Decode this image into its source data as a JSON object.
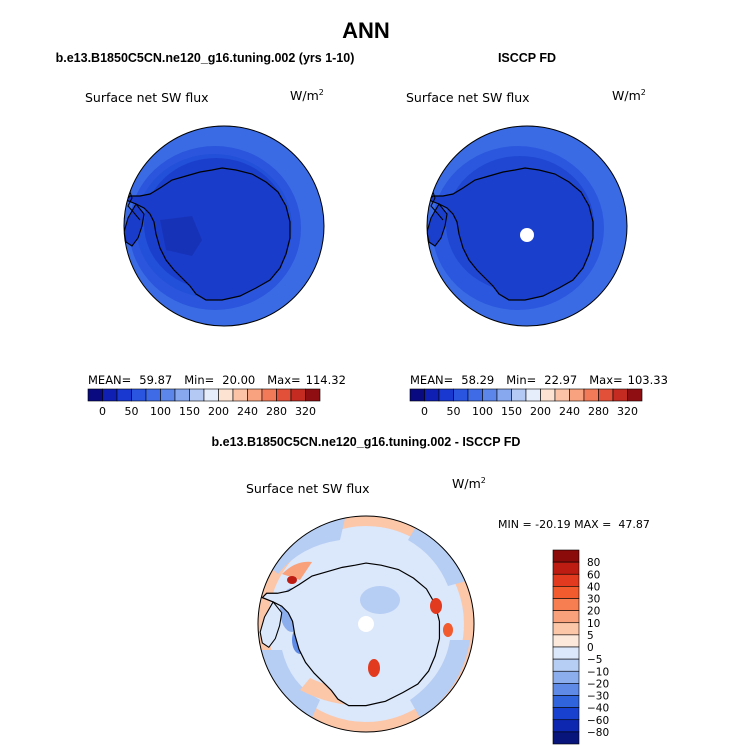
{
  "figure": {
    "title": "ANN",
    "panels": [
      {
        "case": "b.e13.B1850C5CN.ne120_g16.tuning.002 (yrs 1-10)",
        "variable": "Surface net SW flux",
        "units": "W/m",
        "units_exp": "2",
        "stats": {
          "mean_label": "MEAN=",
          "mean": "59.87",
          "min_label": "Min=",
          "min": "20.00",
          "max_label": "Max=",
          "max": "114.32"
        }
      },
      {
        "case": "ISCCP FD",
        "variable": "Surface net SW flux",
        "units": "W/m",
        "units_exp": "2",
        "stats": {
          "mean_label": "MEAN=",
          "mean": "58.29",
          "min_label": "Min=",
          "min": "22.97",
          "max_label": "Max=",
          "max": "103.33"
        }
      }
    ],
    "abs_colorbar": {
      "ticks": [
        "0",
        "50",
        "100",
        "150",
        "200",
        "240",
        "280",
        "320"
      ],
      "colors": [
        "#0a0a80",
        "#0f1fb4",
        "#1838d0",
        "#2a55e0",
        "#3f6ce6",
        "#5c86ea",
        "#87a7ee",
        "#b4c9f3",
        "#e6eefb",
        "#fde3d2",
        "#fcc3a7",
        "#f9a27f",
        "#f27a58",
        "#e3503a",
        "#c62b22",
        "#8e0e12"
      ]
    },
    "diff_panel": {
      "title": "b.e13.B1850C5CN.ne120_g16.tuning.002 - ISCCP FD",
      "variable": "Surface net SW flux",
      "units": "W/m",
      "units_exp": "2",
      "minmax": "MIN = -20.19 MAX =  47.87"
    },
    "diff_colorbar": {
      "labels": [
        "80",
        "60",
        "40",
        "30",
        "20",
        "10",
        "5",
        "0",
        "−5",
        "−10",
        "−20",
        "−30",
        "−40",
        "−60",
        "−80"
      ],
      "colors": [
        "#8b0a0a",
        "#bd1c12",
        "#e23a1e",
        "#f15b2e",
        "#f67e50",
        "#f9a17a",
        "#fcc6a8",
        "#fde8dc",
        "#dbe7fa",
        "#b6cdf4",
        "#8daeec",
        "#5f8ae6",
        "#3064dd",
        "#1841cf",
        "#0e27b0",
        "#08157a"
      ]
    }
  }
}
